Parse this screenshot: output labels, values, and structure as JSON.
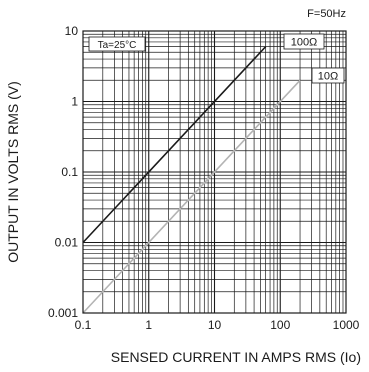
{
  "chart_data": {
    "type": "line",
    "xscale": "log",
    "yscale": "log",
    "xlim": [
      0.1,
      1000
    ],
    "ylim": [
      0.001,
      10
    ],
    "xlabel": "SENSED CURRENT IN AMPS RMS (Io)",
    "ylabel": "OUTPUT IN VOLTS RMS (V)",
    "x_ticks": [
      0.1,
      1,
      10,
      100,
      1000
    ],
    "x_tick_labels": [
      "0.1",
      "1",
      "10",
      "100",
      "1000"
    ],
    "y_ticks": [
      0.001,
      0.01,
      0.1,
      1,
      10
    ],
    "y_tick_labels": [
      "0.001",
      "0.01",
      "0.1",
      "1",
      "10"
    ],
    "grid": true,
    "annotations": [
      {
        "text": "F=50Hz",
        "position": "top-right, above plot"
      },
      {
        "text": "Ta=25°C",
        "position": "top-left, inside plot"
      }
    ],
    "series": [
      {
        "name": "100Ω",
        "color": "#1a1a1a",
        "x": [
          0.1,
          60
        ],
        "y": [
          0.01,
          6
        ]
      },
      {
        "name": "10Ω",
        "color": "#b4b4b4",
        "x": [
          0.1,
          200
        ],
        "y": [
          0.001,
          2
        ]
      }
    ]
  }
}
